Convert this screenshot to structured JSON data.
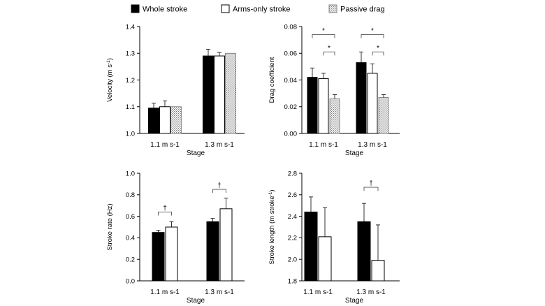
{
  "legend": [
    {
      "label": "Whole stroke",
      "style": "black"
    },
    {
      "label": "Arms-only stroke",
      "style": "white"
    },
    {
      "label": "Passive drag",
      "style": "dotted"
    }
  ],
  "colors": {
    "whole": "#000000",
    "arms": "#ffffff",
    "passive": "#cfcfcf",
    "axis": "#000000",
    "bracket": "#555555"
  },
  "chart_data": [
    {
      "type": "bar",
      "categories": [
        "1.1 m s-1",
        "1.3 m s-1"
      ],
      "xlabel": "Stage",
      "ylabel_main": "Velocity (m s",
      "ylabel_sup": "-1",
      "ylabel_end": ")",
      "ylim": [
        1.0,
        1.4
      ],
      "yticks": [
        "1.0",
        "1.1",
        "1.2",
        "1.3",
        "1.4"
      ],
      "series": [
        {
          "name": "Whole stroke",
          "values": [
            1.095,
            1.29
          ],
          "errors": [
            0.018,
            0.025
          ]
        },
        {
          "name": "Arms-only stroke",
          "values": [
            1.1,
            1.29
          ],
          "errors": [
            0.022,
            0.013
          ]
        },
        {
          "name": "Passive drag",
          "values": [
            1.1,
            1.3
          ],
          "errors": [
            0,
            0
          ]
        }
      ],
      "annotations": []
    },
    {
      "type": "bar",
      "categories": [
        "1.1 m s-1",
        "1.3 m s-1"
      ],
      "xlabel": "Stage",
      "ylabel_main": "Drag coefficient",
      "ylabel_sup": "",
      "ylabel_end": "",
      "ylim": [
        0,
        0.08
      ],
      "yticks": [
        "0.00",
        "0.02",
        "0.04",
        "0.06",
        "0.08"
      ],
      "series": [
        {
          "name": "Whole stroke",
          "values": [
            0.042,
            0.053
          ],
          "errors": [
            0.007,
            0.008
          ]
        },
        {
          "name": "Arms-only stroke",
          "values": [
            0.041,
            0.045
          ],
          "errors": [
            0.004,
            0.007
          ]
        },
        {
          "name": "Passive drag",
          "values": [
            0.026,
            0.027
          ],
          "errors": [
            0.003,
            0.002
          ]
        }
      ],
      "annotations": [
        {
          "symbol": "*",
          "group": 0,
          "from": 0,
          "to": 2,
          "at": 0.074
        },
        {
          "symbol": "*",
          "group": 0,
          "from": 1,
          "to": 2,
          "at": 0.061
        },
        {
          "symbol": "*",
          "group": 1,
          "from": 0,
          "to": 2,
          "at": 0.074
        },
        {
          "symbol": "*",
          "group": 1,
          "from": 1,
          "to": 2,
          "at": 0.061
        }
      ]
    },
    {
      "type": "bar",
      "categories": [
        "1.1 m s-1",
        "1.3 m s-1"
      ],
      "xlabel": "Stage",
      "ylabel_main": "Stroke rate (Hz)",
      "ylabel_sup": "",
      "ylabel_end": "",
      "ylim": [
        0,
        1.0
      ],
      "yticks": [
        "0.0",
        "0.2",
        "0.4",
        "0.6",
        "0.8",
        "1.0"
      ],
      "series": [
        {
          "name": "Whole stroke",
          "values": [
            0.45,
            0.55
          ],
          "errors": [
            0.02,
            0.03
          ]
        },
        {
          "name": "Arms-only stroke",
          "values": [
            0.5,
            0.67
          ],
          "errors": [
            0.05,
            0.1
          ]
        }
      ],
      "annotations": [
        {
          "symbol": "†",
          "group": 0,
          "from": 0,
          "to": 1,
          "at": 0.64
        },
        {
          "symbol": "†",
          "group": 1,
          "from": 0,
          "to": 1,
          "at": 0.85
        }
      ]
    },
    {
      "type": "bar",
      "categories": [
        "1.1 m s-1",
        "1.3 m s-1"
      ],
      "xlabel": "Stage",
      "ylabel_main": "Stroke length (m stroke",
      "ylabel_sup": "-1",
      "ylabel_end": ")",
      "ylim": [
        1.8,
        2.8
      ],
      "yticks": [
        "1.8",
        "2.0",
        "2.2",
        "2.4",
        "2.6",
        "2.8"
      ],
      "series": [
        {
          "name": "Whole stroke",
          "values": [
            2.44,
            2.35
          ],
          "errors": [
            0.14,
            0.17
          ]
        },
        {
          "name": "Arms-only stroke",
          "values": [
            2.21,
            1.99
          ],
          "errors": [
            0.27,
            0.33
          ]
        }
      ],
      "annotations": [
        {
          "symbol": "†",
          "group": 1,
          "from": 0,
          "to": 1,
          "at": 2.67
        }
      ]
    }
  ]
}
